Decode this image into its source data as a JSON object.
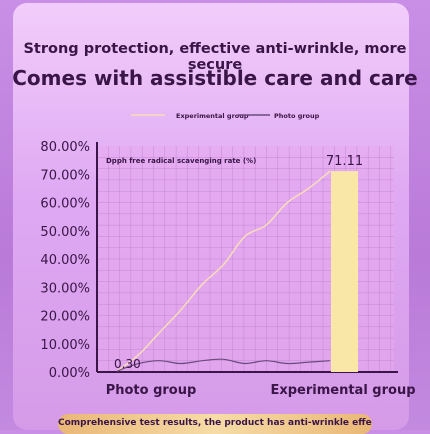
{
  "header": {
    "subtitle": "Strong protection, effective anti-wrinkle, more secure",
    "title": "Comes with assistible care and care"
  },
  "footer": {
    "text": "Comprehensive test results, the product has anti-wrinkle effect on facial skin"
  },
  "colors": {
    "experimental_line": "#f8ddb9",
    "photo_line": "#6a4a7e",
    "bar_fill": "#f9e7a8",
    "text_dark": "#3a1547"
  },
  "chart_data": {
    "type": "line",
    "inner_title": "Dpph free radical scavenging rate (%)",
    "yticks": [
      "80.00%",
      "70.00%",
      "60.00%",
      "50.00%",
      "40.00%",
      "30.00%",
      "20.00%",
      "10.00%",
      "0.00%"
    ],
    "ylim": [
      0,
      80
    ],
    "categories": [
      "Photo group",
      "Experimental group"
    ],
    "legend": [
      "Experimental group",
      "Photo group"
    ],
    "legend_position": "top-center",
    "grid": true,
    "series": [
      {
        "name": "Experimental group",
        "x": [
          0,
          0.1,
          0.2,
          0.3,
          0.4,
          0.5,
          0.6,
          0.7,
          0.8,
          0.9,
          1.0
        ],
        "values": [
          0.3,
          6,
          14,
          22,
          31,
          38,
          48,
          52,
          60,
          65,
          71.11
        ]
      },
      {
        "name": "Photo group",
        "x": [
          0,
          0.1,
          0.2,
          0.3,
          0.4,
          0.5,
          0.6,
          0.7,
          0.8,
          0.9,
          1.0
        ],
        "values": [
          0.3,
          3,
          4,
          3,
          4,
          4.5,
          3,
          4,
          3,
          3.5,
          4
        ]
      }
    ],
    "bar": {
      "category": "Experimental group",
      "value": 71.11,
      "label": "71.11"
    },
    "start_label": "0.30"
  }
}
